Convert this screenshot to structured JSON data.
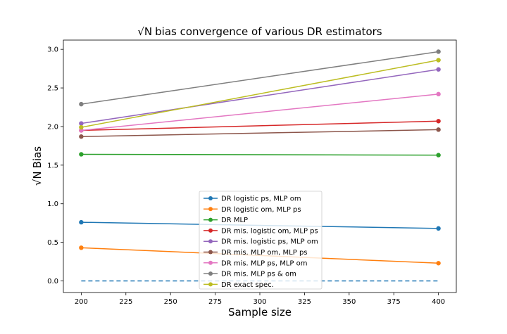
{
  "chart_data": {
    "type": "line",
    "title_prefix": "√N",
    "title_rest": "bias convergence of various DR estimators",
    "xlabel": "Sample size",
    "ylabel_prefix": "√N",
    "ylabel_rest": "Bias",
    "xlim": [
      190,
      410
    ],
    "ylim": [
      -0.15,
      3.12
    ],
    "xticks": [
      200,
      225,
      250,
      275,
      300,
      325,
      350,
      375,
      400
    ],
    "yticks": [
      0.0,
      0.5,
      1.0,
      1.5,
      2.0,
      2.5,
      3.0
    ],
    "xtick_labels": [
      "200",
      "225",
      "250",
      "275",
      "300",
      "325",
      "350",
      "375",
      "400"
    ],
    "ytick_labels": [
      "0.0",
      "0.5",
      "1.0",
      "1.5",
      "2.0",
      "2.5",
      "3.0"
    ],
    "x": [
      200,
      400
    ],
    "grid": false,
    "legend_position": "lower center",
    "series": [
      {
        "name": "DR logistic ps, MLP om",
        "values": [
          0.76,
          0.68
        ],
        "color": "#1f77b4"
      },
      {
        "name": "DR logistic om, MLP ps",
        "values": [
          0.43,
          0.23
        ],
        "color": "#ff7f0e"
      },
      {
        "name": "DR MLP",
        "values": [
          1.64,
          1.63
        ],
        "color": "#2ca02c"
      },
      {
        "name": "DR mis. logistic om, MLP ps",
        "values": [
          1.95,
          2.07
        ],
        "color": "#d62728"
      },
      {
        "name": "DR mis. logistic ps, MLP om",
        "values": [
          2.04,
          2.74
        ],
        "color": "#9467bd"
      },
      {
        "name": "DR mis. MLP om, MLP ps",
        "values": [
          1.87,
          1.96
        ],
        "color": "#8c564b"
      },
      {
        "name": "DR mis. MLP ps, MLP om",
        "values": [
          1.95,
          2.42
        ],
        "color": "#e377c2"
      },
      {
        "name": "DR mis. MLP ps & om",
        "values": [
          2.29,
          2.97
        ],
        "color": "#7f7f7f"
      },
      {
        "name": "DR exact spec.",
        "values": [
          1.99,
          2.86
        ],
        "color": "#bcbd22"
      }
    ],
    "reference_line": {
      "y": 0.0,
      "style": "dashed",
      "color": "#1f77b4"
    }
  }
}
